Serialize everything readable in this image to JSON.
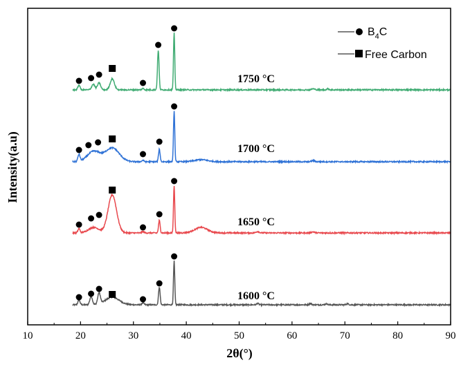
{
  "chart_data": {
    "type": "line",
    "title": "",
    "xlabel": "2θ(°)",
    "ylabel": "Intensity(a.u)",
    "xlim": [
      10,
      90
    ],
    "xticks": [
      10,
      20,
      30,
      40,
      50,
      60,
      70,
      80,
      90
    ],
    "tick_labels": [
      "10",
      "20",
      "30",
      "40",
      "50",
      "60",
      "70",
      "80",
      "90"
    ],
    "y_ticks_shown": false,
    "grid": false,
    "legend_position": "top-right",
    "legend": [
      {
        "marker": "circle",
        "label_prefix": "B",
        "label_sub": "4",
        "label_suffix": "C"
      },
      {
        "marker": "square",
        "label": "Free Carbon"
      }
    ],
    "series": [
      {
        "name": "1600 °C",
        "color": "#555555",
        "offset": 0,
        "peaks": [
          {
            "x": 19.7,
            "h": 0.07,
            "w": 0.2
          },
          {
            "x": 22.0,
            "h": 0.12,
            "w": 0.25
          },
          {
            "x": 23.5,
            "h": 0.16,
            "w": 0.25
          },
          {
            "x": 26.0,
            "h": 0.11,
            "w": 1.3
          },
          {
            "x": 31.8,
            "h": 0.03,
            "w": 0.2
          },
          {
            "x": 34.9,
            "h": 0.26,
            "w": 0.15
          },
          {
            "x": 37.7,
            "h": 0.63,
            "w": 0.12
          },
          {
            "x": 53.5,
            "h": 0.02,
            "w": 0.2
          },
          {
            "x": 63.5,
            "h": 0.02,
            "w": 0.2
          },
          {
            "x": 66.5,
            "h": 0.015,
            "w": 0.2
          },
          {
            "x": 70.5,
            "h": 0.015,
            "w": 0.2
          }
        ],
        "markers": [
          {
            "type": "circle",
            "x": 19.7,
            "y": 0.11
          },
          {
            "type": "circle",
            "x": 22.0,
            "y": 0.16
          },
          {
            "type": "circle",
            "x": 23.5,
            "y": 0.23
          },
          {
            "type": "square",
            "x": 26.0,
            "y": 0.15
          },
          {
            "type": "circle",
            "x": 31.8,
            "y": 0.08
          },
          {
            "type": "circle",
            "x": 34.9,
            "y": 0.31
          },
          {
            "type": "circle",
            "x": 37.7,
            "y": 0.7
          }
        ]
      },
      {
        "name": "1650 °C",
        "color": "#e8474c",
        "offset": 1,
        "peaks": [
          {
            "x": 19.7,
            "h": 0.06,
            "w": 0.2
          },
          {
            "x": 22.5,
            "h": 0.08,
            "w": 1.0
          },
          {
            "x": 26.0,
            "h": 0.55,
            "w": 0.8
          },
          {
            "x": 31.8,
            "h": 0.02,
            "w": 0.2
          },
          {
            "x": 34.9,
            "h": 0.18,
            "w": 0.15
          },
          {
            "x": 37.7,
            "h": 0.68,
            "w": 0.12
          },
          {
            "x": 42.8,
            "h": 0.08,
            "w": 1.2
          },
          {
            "x": 53.5,
            "h": 0.02,
            "w": 0.3
          },
          {
            "x": 64.0,
            "h": 0.015,
            "w": 0.3
          }
        ],
        "markers": [
          {
            "type": "circle",
            "x": 19.7,
            "y": 0.12
          },
          {
            "type": "circle",
            "x": 22.0,
            "y": 0.21
          },
          {
            "type": "circle",
            "x": 23.5,
            "y": 0.26
          },
          {
            "type": "square",
            "x": 26.0,
            "y": 0.62
          },
          {
            "type": "circle",
            "x": 31.8,
            "y": 0.08
          },
          {
            "type": "circle",
            "x": 34.9,
            "y": 0.27
          },
          {
            "type": "circle",
            "x": 37.7,
            "y": 0.75
          }
        ]
      },
      {
        "name": "1700 °C",
        "color": "#2f72d6",
        "offset": 2,
        "peaks": [
          {
            "x": 19.7,
            "h": 0.1,
            "w": 0.2
          },
          {
            "x": 22.5,
            "h": 0.15,
            "w": 1.2
          },
          {
            "x": 26.0,
            "h": 0.2,
            "w": 1.3
          },
          {
            "x": 31.8,
            "h": 0.02,
            "w": 0.2
          },
          {
            "x": 34.9,
            "h": 0.18,
            "w": 0.15
          },
          {
            "x": 37.7,
            "h": 0.74,
            "w": 0.12
          },
          {
            "x": 42.8,
            "h": 0.03,
            "w": 1.2
          },
          {
            "x": 64.0,
            "h": 0.015,
            "w": 0.3
          }
        ],
        "markers": [
          {
            "type": "circle",
            "x": 19.7,
            "y": 0.17
          },
          {
            "type": "circle",
            "x": 21.5,
            "y": 0.24
          },
          {
            "type": "circle",
            "x": 23.3,
            "y": 0.28
          },
          {
            "type": "square",
            "x": 26.0,
            "y": 0.33
          },
          {
            "type": "circle",
            "x": 31.8,
            "y": 0.11
          },
          {
            "type": "circle",
            "x": 34.9,
            "y": 0.29
          },
          {
            "type": "circle",
            "x": 37.7,
            "y": 0.8
          }
        ]
      },
      {
        "name": "1750 °C",
        "color": "#3fab72",
        "offset": 3,
        "peaks": [
          {
            "x": 19.7,
            "h": 0.07,
            "w": 0.2
          },
          {
            "x": 22.4,
            "h": 0.08,
            "w": 0.3
          },
          {
            "x": 23.5,
            "h": 0.1,
            "w": 0.3
          },
          {
            "x": 26.0,
            "h": 0.16,
            "w": 0.4
          },
          {
            "x": 31.8,
            "h": 0.02,
            "w": 0.2
          },
          {
            "x": 34.7,
            "h": 0.57,
            "w": 0.15
          },
          {
            "x": 37.7,
            "h": 0.82,
            "w": 0.12
          },
          {
            "x": 64.0,
            "h": 0.015,
            "w": 0.3
          },
          {
            "x": 66.8,
            "h": 0.015,
            "w": 0.2
          }
        ],
        "markers": [
          {
            "type": "circle",
            "x": 19.7,
            "y": 0.13
          },
          {
            "type": "circle",
            "x": 22.0,
            "y": 0.17
          },
          {
            "type": "circle",
            "x": 23.5,
            "y": 0.22
          },
          {
            "type": "square",
            "x": 26.0,
            "y": 0.31
          },
          {
            "type": "circle",
            "x": 31.8,
            "y": 0.1
          },
          {
            "type": "circle",
            "x": 34.7,
            "y": 0.65
          },
          {
            "type": "circle",
            "x": 37.7,
            "y": 0.89
          }
        ]
      }
    ]
  }
}
